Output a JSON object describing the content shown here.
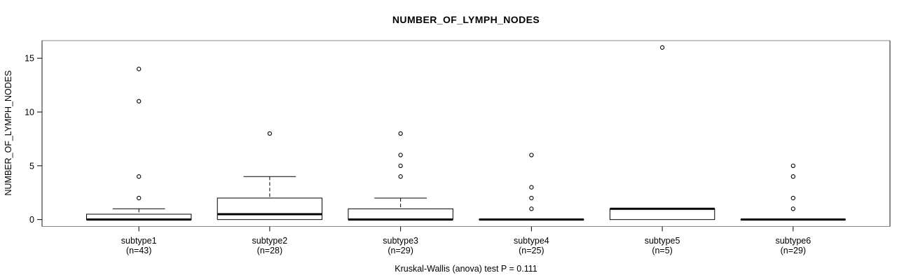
{
  "chart_data": {
    "type": "boxplot",
    "title": "NUMBER_OF_LYMPH_NODES",
    "ylabel": "NUMBER_OF_LYMPH_NODES",
    "caption": "Kruskal-Wallis (anova) test P = 0.111",
    "ylim": [
      0,
      16
    ],
    "yticks": [
      0,
      5,
      10,
      15
    ],
    "grid": false,
    "legend": "none",
    "box_fill": "#ffffff",
    "line_color": "#000000",
    "frame_color_h": "#8c8c8c",
    "frame_color_v": "#1a1a1a",
    "groups": [
      {
        "label": "subtype1",
        "sublabel": "(n=43)",
        "n": 43,
        "q1": 0,
        "median": 0,
        "q3": 0.5,
        "whisker_low": 0,
        "whisker_high": 1,
        "outliers": [
          2,
          4,
          11,
          14
        ]
      },
      {
        "label": "subtype2",
        "sublabel": "(n=28)",
        "n": 28,
        "q1": 0,
        "median": 0.5,
        "q3": 2,
        "whisker_low": 0,
        "whisker_high": 4,
        "outliers": [
          8
        ]
      },
      {
        "label": "subtype3",
        "sublabel": "(n=29)",
        "n": 29,
        "q1": 0,
        "median": 0,
        "q3": 1,
        "whisker_low": 0,
        "whisker_high": 2,
        "outliers": [
          4,
          5,
          6,
          8
        ]
      },
      {
        "label": "subtype4",
        "sublabel": "(n=25)",
        "n": 25,
        "q1": 0,
        "median": 0,
        "q3": 0,
        "whisker_low": 0,
        "whisker_high": 0,
        "outliers": [
          1,
          2,
          3,
          6
        ]
      },
      {
        "label": "subtype5",
        "sublabel": "(n=5)",
        "n": 5,
        "q1": 0,
        "median": 1,
        "q3": 1,
        "whisker_low": 0,
        "whisker_high": 1,
        "outliers": [
          16
        ]
      },
      {
        "label": "subtype6",
        "sublabel": "(n=29)",
        "n": 29,
        "q1": 0,
        "median": 0,
        "q3": 0,
        "whisker_low": 0,
        "whisker_high": 0,
        "outliers": [
          1,
          2,
          4,
          5
        ]
      }
    ]
  }
}
